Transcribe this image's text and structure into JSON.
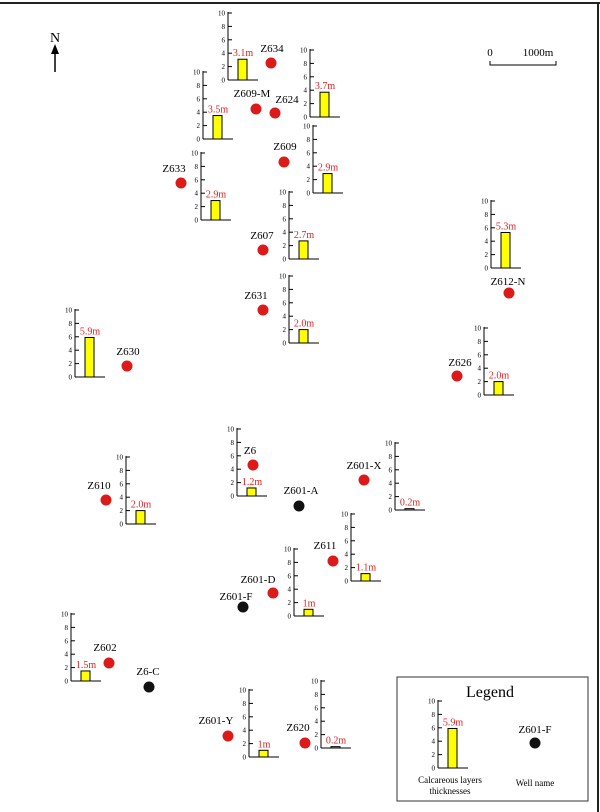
{
  "north_label": "N",
  "scale_bar": {
    "start_label": "0",
    "end_label": "1000m"
  },
  "axis_ticks": [
    "0",
    "2",
    "4",
    "6",
    "8",
    "10"
  ],
  "colors": {
    "bar_fill": "#ffff00",
    "well_red": "#dd1a1a",
    "well_black": "#111111",
    "value_text": "#d22222"
  },
  "thickness_charts": [
    {
      "well": "Z634",
      "value": 3.1,
      "label": "3.1m"
    },
    {
      "well": "Z609-M",
      "value": 3.5,
      "label": "3.5m"
    },
    {
      "well": "Z624",
      "value": 3.7,
      "label": "3.7m"
    },
    {
      "well": "Z609",
      "value": 2.9,
      "label": "2.9m"
    },
    {
      "well": "Z633",
      "value": 2.9,
      "label": "2.9m"
    },
    {
      "well": "Z607",
      "value": 2.7,
      "label": "2.7m"
    },
    {
      "well": "Z612-N",
      "value": 5.3,
      "label": "5.3m"
    },
    {
      "well": "Z631",
      "value": 2.0,
      "label": "2.0m"
    },
    {
      "well": "Z630",
      "value": 5.9,
      "label": "5.9m"
    },
    {
      "well": "Z626",
      "value": 2.0,
      "label": "2.0m"
    },
    {
      "well": "Z6",
      "value": 1.2,
      "label": "1.2m"
    },
    {
      "well": "Z610",
      "value": 2.0,
      "label": "2.0m"
    },
    {
      "well": "Z601-X",
      "value": 0.2,
      "label": "0.2m"
    },
    {
      "well": "Z611",
      "value": 1.1,
      "label": "1.1m"
    },
    {
      "well": "Z601-D",
      "value": 1,
      "label": "1m"
    },
    {
      "well": "Z602",
      "value": 1.5,
      "label": "1.5m"
    },
    {
      "well": "Z601-Y",
      "value": 1,
      "label": "1m"
    },
    {
      "well": "Z620",
      "value": 0.2,
      "label": "0.2m"
    }
  ],
  "wells": [
    {
      "name": "Z634",
      "type": "red"
    },
    {
      "name": "Z609-M",
      "type": "red"
    },
    {
      "name": "Z624",
      "type": "red"
    },
    {
      "name": "Z609",
      "type": "red"
    },
    {
      "name": "Z633",
      "type": "red"
    },
    {
      "name": "Z607",
      "type": "red"
    },
    {
      "name": "Z612-N",
      "type": "red"
    },
    {
      "name": "Z631",
      "type": "red"
    },
    {
      "name": "Z630",
      "type": "red"
    },
    {
      "name": "Z626",
      "type": "red"
    },
    {
      "name": "Z6",
      "type": "red"
    },
    {
      "name": "Z601-X",
      "type": "red"
    },
    {
      "name": "Z610",
      "type": "red"
    },
    {
      "name": "Z601-A",
      "type": "black"
    },
    {
      "name": "Z611",
      "type": "red"
    },
    {
      "name": "Z601-D",
      "type": "red"
    },
    {
      "name": "Z601-F",
      "type": "black"
    },
    {
      "name": "Z602",
      "type": "red"
    },
    {
      "name": "Z6-C",
      "type": "black"
    },
    {
      "name": "Z601-Y",
      "type": "red"
    },
    {
      "name": "Z620",
      "type": "red"
    }
  ],
  "legend": {
    "title": "Legend",
    "sample_value": 5.9,
    "sample_label": "5.9m",
    "sample_well": "Z601-F",
    "bar_caption_line1": "Calcareous layers",
    "bar_caption_line2": "thicknesses",
    "well_caption": "Well name"
  }
}
